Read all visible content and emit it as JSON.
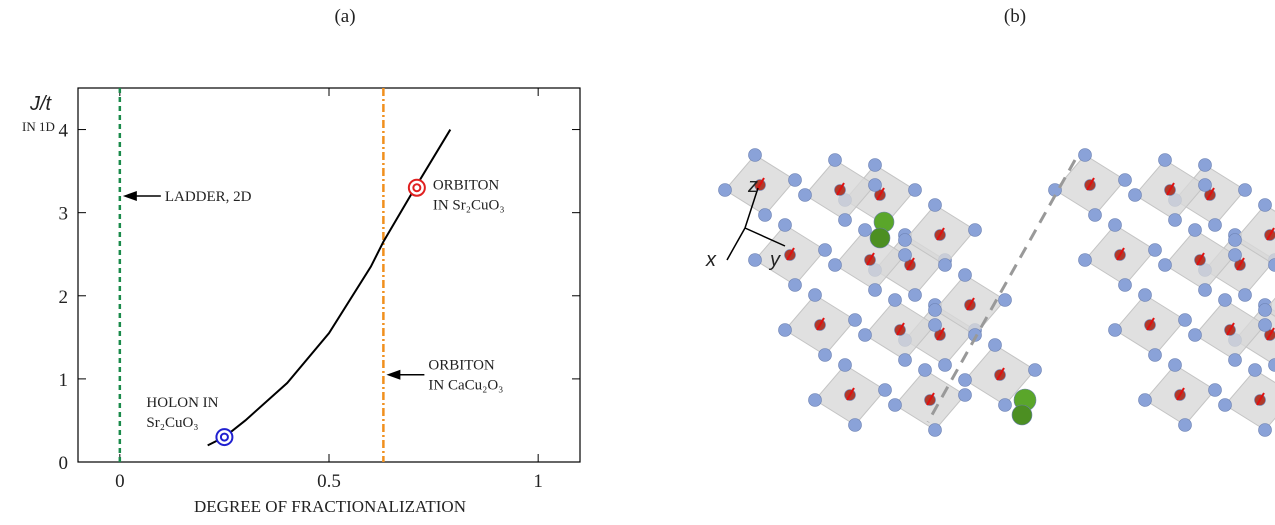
{
  "chart_data": {
    "type": "line",
    "panel_label": "(a)",
    "y_label": "J/t",
    "y_sublabel": "IN 1D",
    "x_label": "DEGREE OF FRACTIONALIZATION",
    "xlim": [
      -0.1,
      1.1
    ],
    "ylim": [
      0,
      4.5
    ],
    "xticks": [
      0,
      0.5,
      1
    ],
    "yticks": [
      0,
      1,
      2,
      3,
      4
    ],
    "series": [
      {
        "color": "#000000",
        "x": [
          0.21,
          0.25,
          0.3,
          0.4,
          0.5,
          0.6,
          0.63,
          0.7,
          0.79
        ],
        "values": [
          0.2,
          0.3,
          0.5,
          0.95,
          1.55,
          2.35,
          2.65,
          3.25,
          4.0
        ]
      }
    ],
    "vlines": [
      {
        "x": 0,
        "color": "#1a8a4a",
        "dash": "5,4"
      },
      {
        "x": 0.63,
        "color": "#f0901e",
        "dash": "8,3,2,3"
      }
    ],
    "markers": [
      {
        "x": 0.25,
        "y": 0.3,
        "color": "#2020d0"
      },
      {
        "x": 0.71,
        "y": 3.3,
        "color": "#e02020"
      }
    ],
    "annotations": [
      {
        "lines": [
          "LADDER, 2D"
        ],
        "x": 0,
        "y": 3.2,
        "arrow": true
      },
      {
        "lines": [
          "ORBITON",
          "IN CaCu₂O₃"
        ],
        "x": 0.63,
        "y": 1.05,
        "arrow": true
      },
      {
        "lines": [
          "HOLON IN",
          "Sr₂CuO₃"
        ],
        "x": 0.25,
        "y": 0.3,
        "arrow": false
      },
      {
        "lines": [
          "ORBITON",
          "IN Sr₂CuO₃"
        ],
        "x": 0.71,
        "y": 3.3,
        "arrow": false
      }
    ]
  },
  "panel_b": {
    "label": "(b)",
    "axis_labels": {
      "x": "x",
      "y": "y",
      "z": "z"
    }
  }
}
